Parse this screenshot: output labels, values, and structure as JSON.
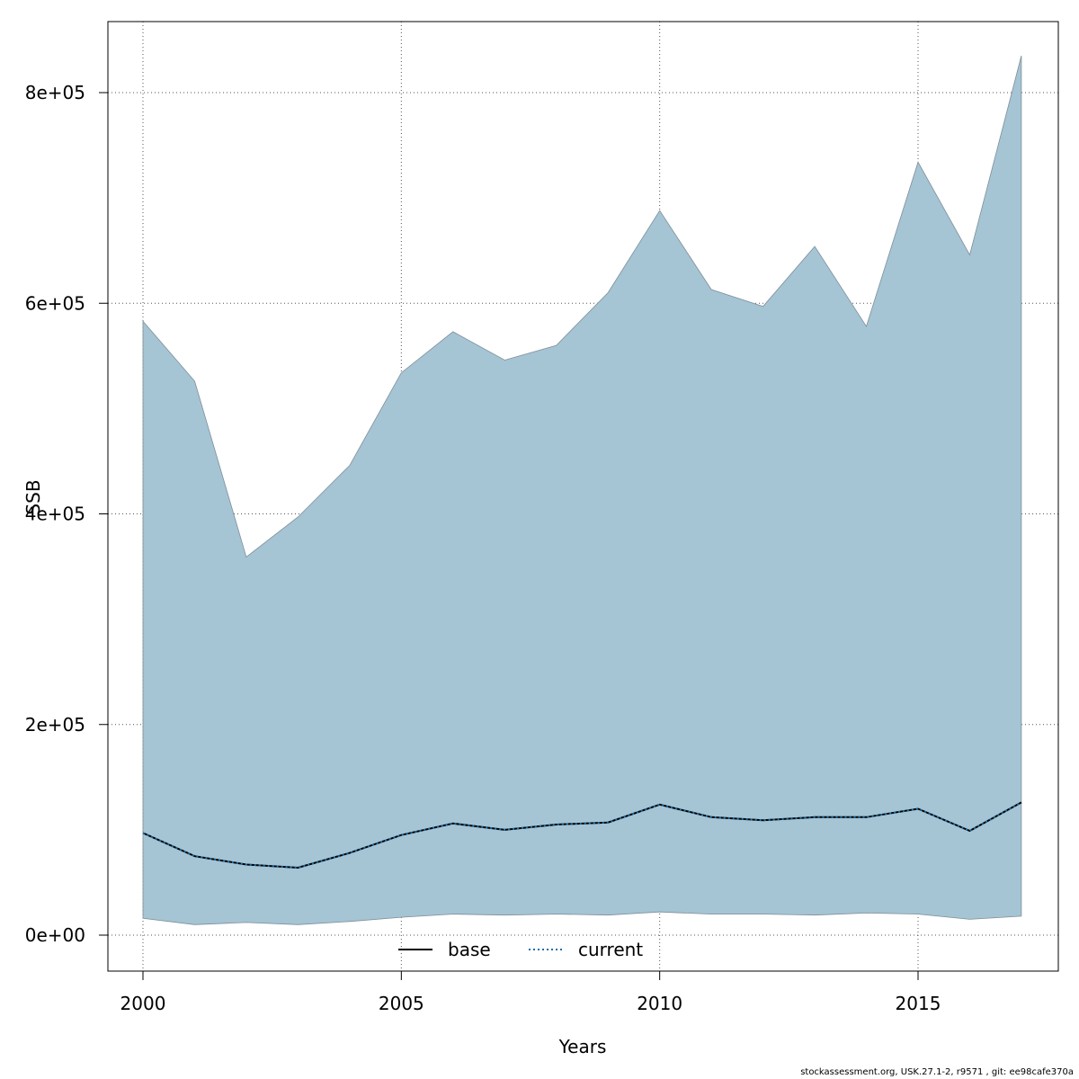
{
  "chart_data": {
    "type": "area",
    "title": "",
    "xlabel": "Years",
    "ylabel": "SSB",
    "xlim": [
      2000,
      2017
    ],
    "ylim": [
      0,
      850000
    ],
    "grid": true,
    "x_ticks": [
      2000,
      2005,
      2010,
      2015
    ],
    "x_tick_labels": [
      "2000",
      "2005",
      "2010",
      "2015"
    ],
    "y_ticks": [
      0,
      200000,
      400000,
      600000,
      800000
    ],
    "y_tick_labels": [
      "0e+00",
      "2e+05",
      "4e+05",
      "6e+05",
      "8e+05"
    ],
    "x": [
      2000,
      2001,
      2002,
      2003,
      2004,
      2005,
      2006,
      2007,
      2008,
      2009,
      2010,
      2011,
      2012,
      2013,
      2014,
      2015,
      2016,
      2017
    ],
    "band": {
      "color": "#a5c4d4",
      "upper": [
        583000,
        526000,
        359000,
        397000,
        446000,
        534000,
        573000,
        546000,
        560000,
        610000,
        688000,
        613000,
        597000,
        654000,
        578000,
        734000,
        646000,
        835000
      ],
      "lower": [
        16000,
        10000,
        12000,
        10000,
        13000,
        17000,
        20000,
        19000,
        20000,
        19000,
        22000,
        20000,
        20000,
        19000,
        21000,
        20000,
        15000,
        18000
      ]
    },
    "series": [
      {
        "name": "base",
        "line_style": "solid",
        "color": "#000000",
        "values": [
          97000,
          75000,
          67000,
          64000,
          78000,
          95000,
          106000,
          100000,
          105000,
          107000,
          124000,
          112000,
          109000,
          112000,
          112000,
          120000,
          99000,
          126000
        ]
      },
      {
        "name": "current",
        "line_style": "dotted",
        "color": "#1f6fa8",
        "values": [
          97000,
          75000,
          67000,
          64000,
          78000,
          95000,
          106000,
          100000,
          105000,
          107000,
          124000,
          112000,
          109000,
          112000,
          112000,
          120000,
          99000,
          126000
        ]
      }
    ],
    "legend": {
      "placement": "bottom-center",
      "entries": [
        "base",
        "current"
      ]
    }
  },
  "footer": "stockassessment.org, USK.27.1-2, r9571 , git: ee98cafe370a"
}
